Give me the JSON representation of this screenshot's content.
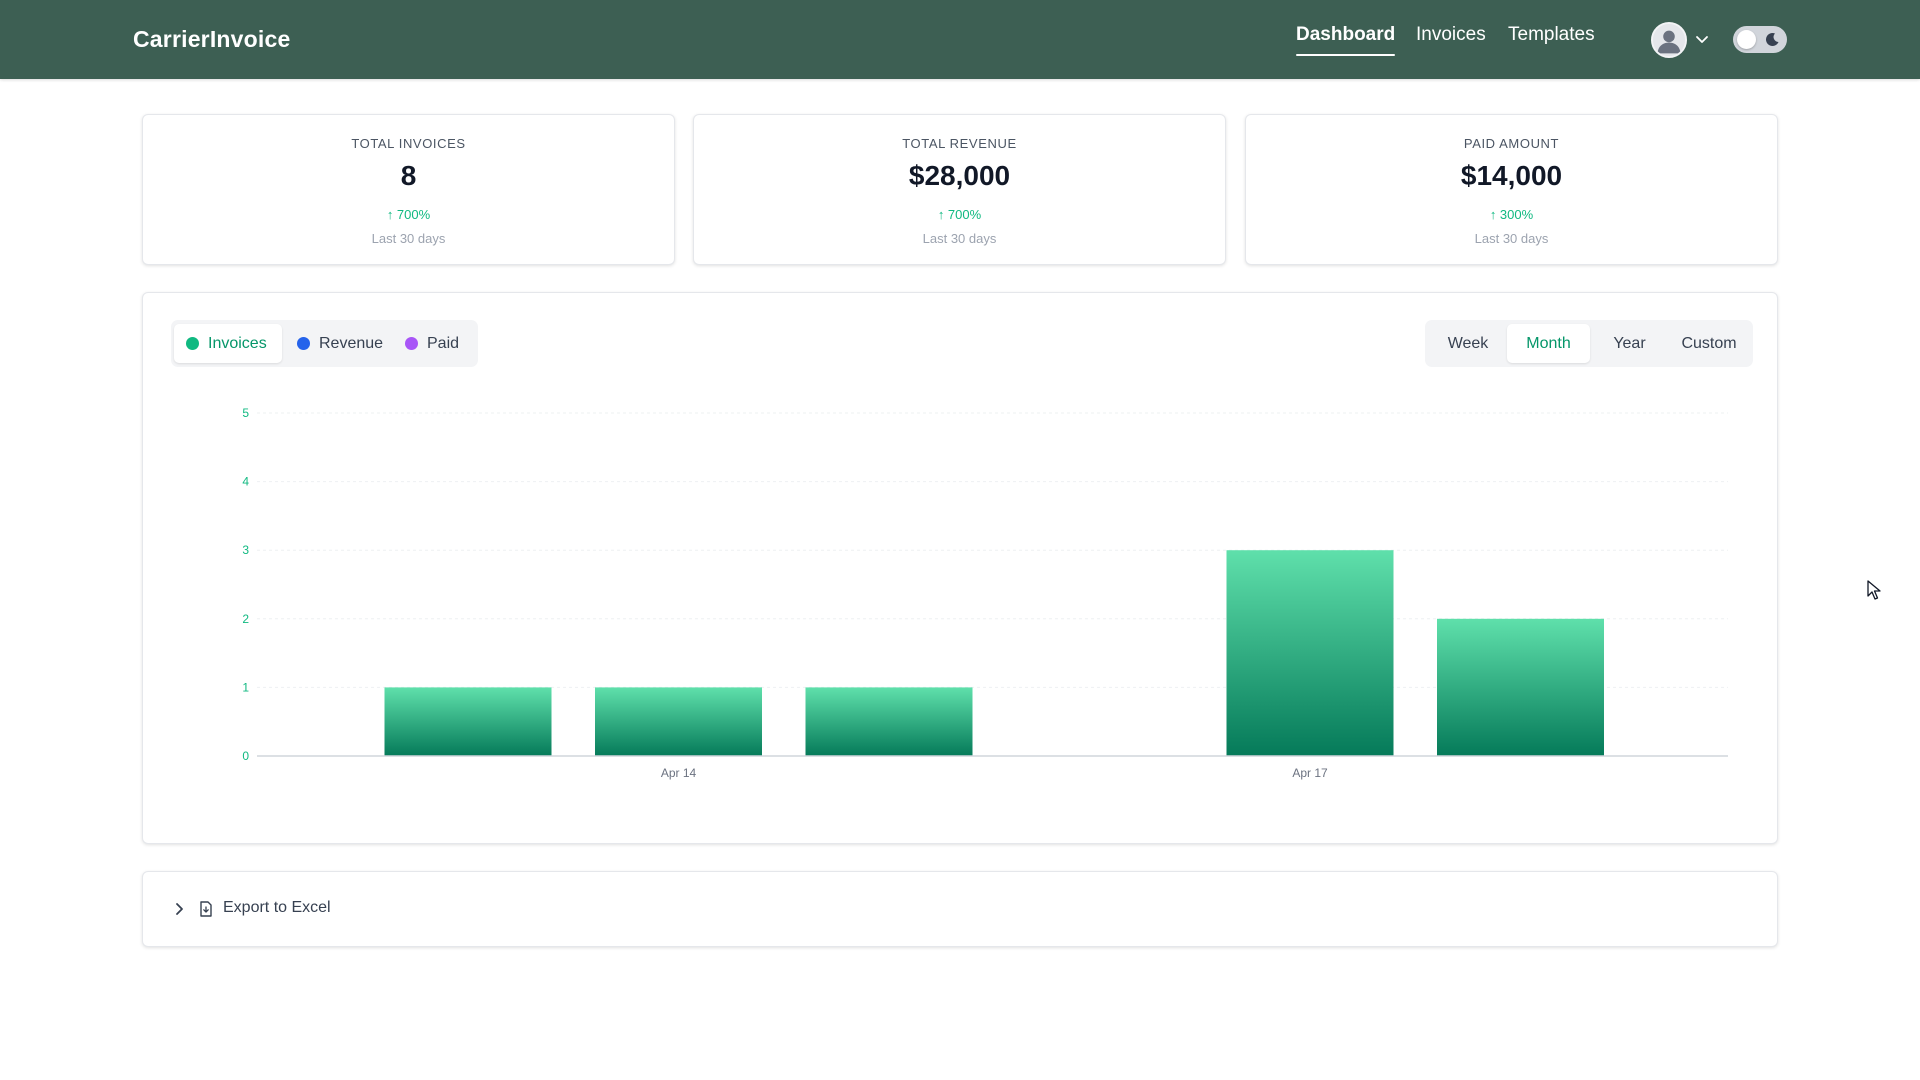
{
  "header": {
    "brand": "CarrierInvoice",
    "nav": [
      {
        "label": "Dashboard",
        "active": true
      },
      {
        "label": "Invoices",
        "active": false
      },
      {
        "label": "Templates",
        "active": false
      }
    ],
    "avatar_icon": "user-avatar-icon",
    "theme_toggle": {
      "state": "off",
      "icon": "moon-icon"
    }
  },
  "stats": [
    {
      "label": "TOTAL INVOICES",
      "value": "8",
      "change": "↑ 700%",
      "period": "Last 30 days"
    },
    {
      "label": "TOTAL REVENUE",
      "value": "$28,000",
      "change": "↑ 700%",
      "period": "Last 30 days"
    },
    {
      "label": "PAID AMOUNT",
      "value": "$14,000",
      "change": "↑ 300%",
      "period": "Last 30 days"
    }
  ],
  "chart_controls": {
    "metrics": [
      {
        "label": "Invoices",
        "color": "#10b981",
        "active": true
      },
      {
        "label": "Revenue",
        "color": "#2563eb",
        "active": false
      },
      {
        "label": "Paid",
        "color": "#a855f7",
        "active": false
      }
    ],
    "ranges": [
      {
        "label": "Week",
        "active": false
      },
      {
        "label": "Month",
        "active": true
      },
      {
        "label": "Year",
        "active": false
      },
      {
        "label": "Custom",
        "active": false
      }
    ]
  },
  "chart_data": {
    "type": "bar",
    "categories": [
      "",
      "Apr 14",
      "",
      "",
      "Apr 17",
      ""
    ],
    "values": [
      1,
      1,
      1,
      0,
      3,
      2
    ],
    "ylim": [
      0,
      5
    ],
    "yticks": [
      "0",
      "1",
      "2",
      "3",
      "4",
      "5"
    ],
    "grid": true,
    "colors": {
      "bar_top": "#5fe0ab",
      "bar_bottom": "#057a59",
      "tick": "#10b981"
    }
  },
  "export": {
    "label": "Export to Excel",
    "icon": "file-export-icon",
    "chevron": "chevron-right-icon"
  }
}
